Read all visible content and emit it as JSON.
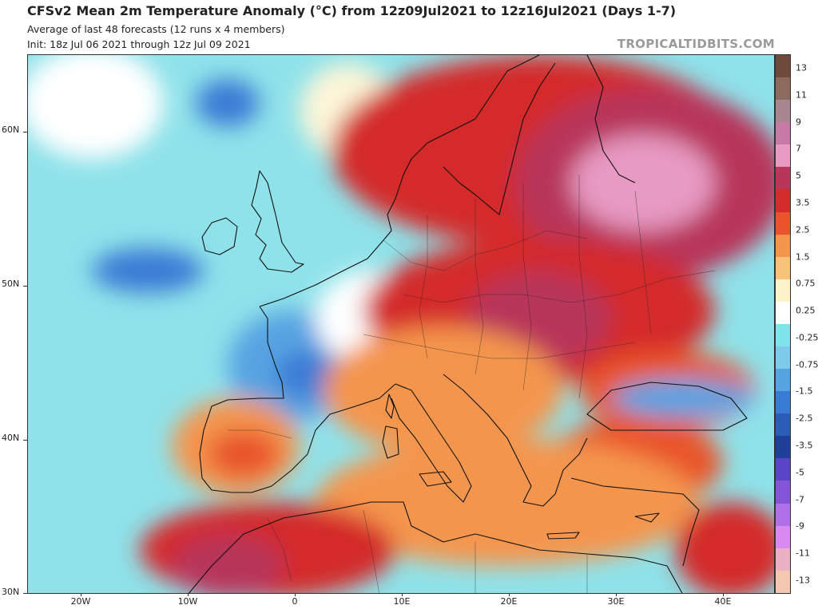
{
  "header": {
    "title": "CFSv2 Mean 2m Temperature Anomaly (°C) from 12z09Jul2021 to 12z16Jul2021 (Days 1-7)",
    "subtitle_1": "Average of last 48 forecasts (12 runs x 4 members)",
    "subtitle_2": "Init: 18z Jul 06 2021 through 12z Jul 09 2021",
    "brand": "TROPICALTIDBITS.COM"
  },
  "map": {
    "region": "Europe / North Africa",
    "lat_labels": [
      "60N",
      "50N",
      "40N",
      "30N"
    ],
    "lon_labels": [
      "20W",
      "10W",
      "0",
      "10E",
      "20E",
      "30E",
      "40E"
    ]
  },
  "colorbar": {
    "labels": [
      "13",
      "11",
      "9",
      "7",
      "5",
      "3.5",
      "2.5",
      "1.5",
      "0.75",
      "0.25",
      "-0.25",
      "-0.75",
      "-1.5",
      "-2.5",
      "-3.5",
      "-5",
      "-7",
      "-9",
      "-11",
      "-13"
    ],
    "colors": [
      "#6e4a3a",
      "#8c6a5e",
      "#a88690",
      "#c87aa6",
      "#e79ac2",
      "#b8365a",
      "#d42c2c",
      "#e9542c",
      "#f4954e",
      "#f7c27a",
      "#fdf2c8",
      "#ffffff",
      "#7fe3ec",
      "#7fc9ec",
      "#57a3e2",
      "#3a7bd5",
      "#2c5bb8",
      "#1f3f98",
      "#5a45c8",
      "#8455d8",
      "#b070e8",
      "#d88af0",
      "#eab0c4",
      "#f4c8b0"
    ]
  }
}
